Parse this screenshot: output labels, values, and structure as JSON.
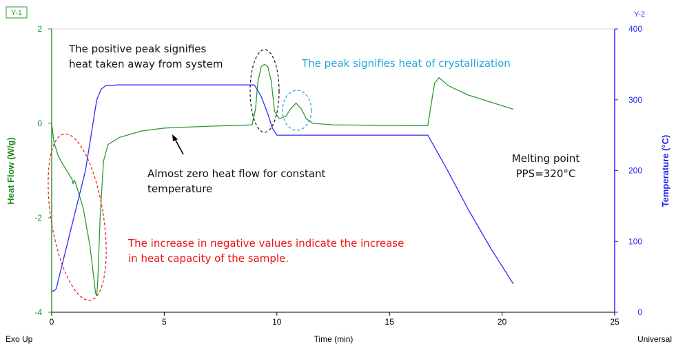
{
  "chart_data": {
    "type": "line",
    "xlabel": "Time (min)",
    "xlim": [
      0,
      25
    ],
    "xticks": [
      "0",
      "5",
      "10",
      "15",
      "20",
      "25"
    ],
    "y1": {
      "tag": "Y-1",
      "label": "Heat Flow (W/g)",
      "ylim": [
        -4,
        2
      ],
      "ticks": [
        "2",
        "0",
        "-2",
        "-4"
      ],
      "color": "#228b22"
    },
    "y2": {
      "tag": "Y-2",
      "label": "Temperature (°C)",
      "ylim": [
        0,
        400
      ],
      "ticks": [
        "400",
        "300",
        "200",
        "100",
        "0"
      ],
      "color": "#2222ee"
    },
    "corner_left": "Exo Up",
    "corner_right": "Universal",
    "series": [
      {
        "axis": "y1",
        "color": "#2e9a2e",
        "x": [
          0,
          0.1,
          0.3,
          0.6,
          0.8,
          0.9,
          0.95,
          1.0,
          1.05,
          1.15,
          1.4,
          1.7,
          1.85,
          1.95,
          2.0,
          2.05,
          2.15,
          2.3,
          2.5,
          3.0,
          4.0,
          5.0,
          7.0,
          8.5,
          8.9,
          9.05,
          9.15,
          9.3,
          9.45,
          9.6,
          9.75,
          9.9,
          10.1,
          10.4,
          10.6,
          10.85,
          11.1,
          11.3,
          11.6,
          12.5,
          14.0,
          16.0,
          16.7,
          16.85,
          17.0,
          17.2,
          17.6,
          18.5,
          19.5,
          20.5
        ],
        "y": [
          0,
          -0.4,
          -0.7,
          -0.95,
          -1.1,
          -1.18,
          -1.28,
          -1.2,
          -1.25,
          -1.4,
          -1.8,
          -2.6,
          -3.2,
          -3.6,
          -3.65,
          -3.3,
          -2.0,
          -0.8,
          -0.45,
          -0.3,
          -0.16,
          -0.1,
          -0.06,
          -0.04,
          -0.03,
          0.3,
          0.85,
          1.2,
          1.25,
          1.2,
          0.9,
          0.25,
          0.1,
          0.15,
          0.3,
          0.43,
          0.3,
          0.1,
          0.0,
          -0.03,
          -0.04,
          -0.05,
          -0.05,
          0.4,
          0.85,
          0.97,
          0.8,
          0.6,
          0.45,
          0.3
        ]
      },
      {
        "axis": "y2",
        "color": "#2a2aff",
        "x": [
          0,
          0.1,
          0.2,
          1.5,
          2.0,
          2.2,
          2.4,
          3.0,
          5.0,
          9.0,
          9.3,
          9.6,
          9.8,
          10.0,
          10.3,
          12.0,
          15.0,
          16.7,
          17.5,
          18.5,
          19.5,
          20.5
        ],
        "y": [
          30,
          30,
          33,
          200,
          300,
          315,
          320,
          321,
          321,
          321,
          305,
          280,
          260,
          250,
          250,
          250,
          250,
          250,
          205,
          145,
          90,
          40
        ]
      }
    ],
    "annotations": {
      "positive_peak": "The positive peak signifies\nheat taken away from system",
      "crystallization": "The peak signifies heat of crystallization",
      "zero_flow": "Almost zero heat flow for constant\ntemperature",
      "melting": "Melting point\nPPS=320°C",
      "heat_capacity": "The increase in negative values indicate the increase\nin heat capacity of the sample."
    },
    "annotation_colors": {
      "positive_peak": "#111111",
      "crystallization": "#1fa8dd",
      "zero_flow": "#111111",
      "melting": "#111111",
      "heat_capacity": "#ee1111"
    },
    "highlight_ellipses": [
      {
        "label": "heat-capacity-region",
        "color": "#ee2222"
      },
      {
        "label": "melting-peak",
        "color": "#222222"
      },
      {
        "label": "crystallization-peak",
        "color": "#22aadd"
      }
    ]
  }
}
